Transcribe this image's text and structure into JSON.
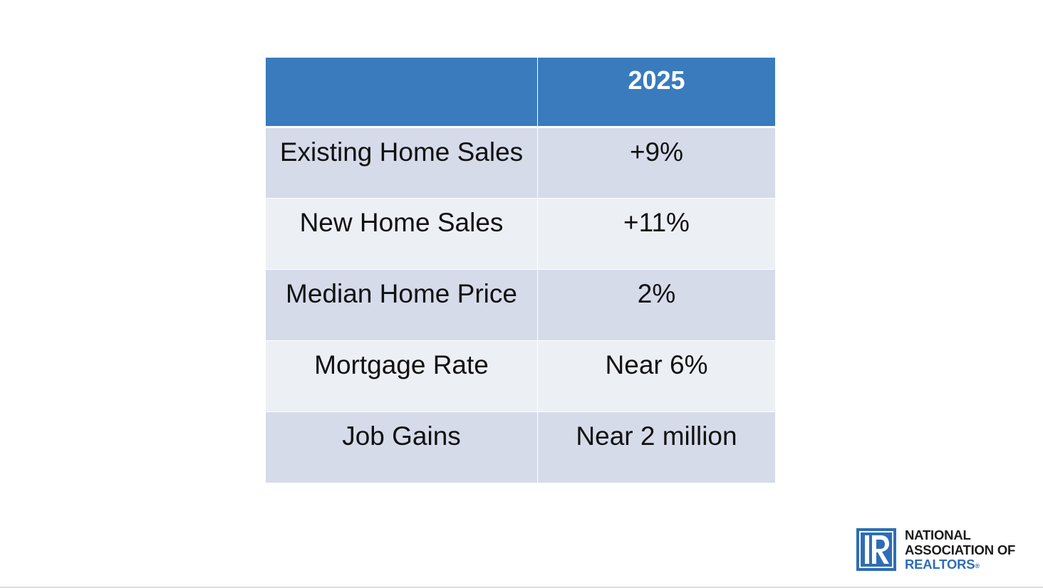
{
  "table": {
    "header": [
      "",
      "2025"
    ],
    "rows": [
      [
        "Existing Home Sales",
        "+9%"
      ],
      [
        "New Home Sales",
        "+11%"
      ],
      [
        "Median Home Price",
        "2%"
      ],
      [
        "Mortgage Rate",
        "Near 6%"
      ],
      [
        "Job Gains",
        "Near 2 million"
      ]
    ]
  },
  "logo": {
    "lines": [
      "NATIONAL",
      "ASSOCIATION OF",
      "REALTORS"
    ],
    "registered_mark": "®",
    "icon": "realtor-r-icon"
  },
  "colors": {
    "header_bg": "#3a7bbd",
    "row_odd_bg": "#d6dbea",
    "row_even_bg": "#eceff4",
    "logo_blue": "#2f6db5"
  }
}
